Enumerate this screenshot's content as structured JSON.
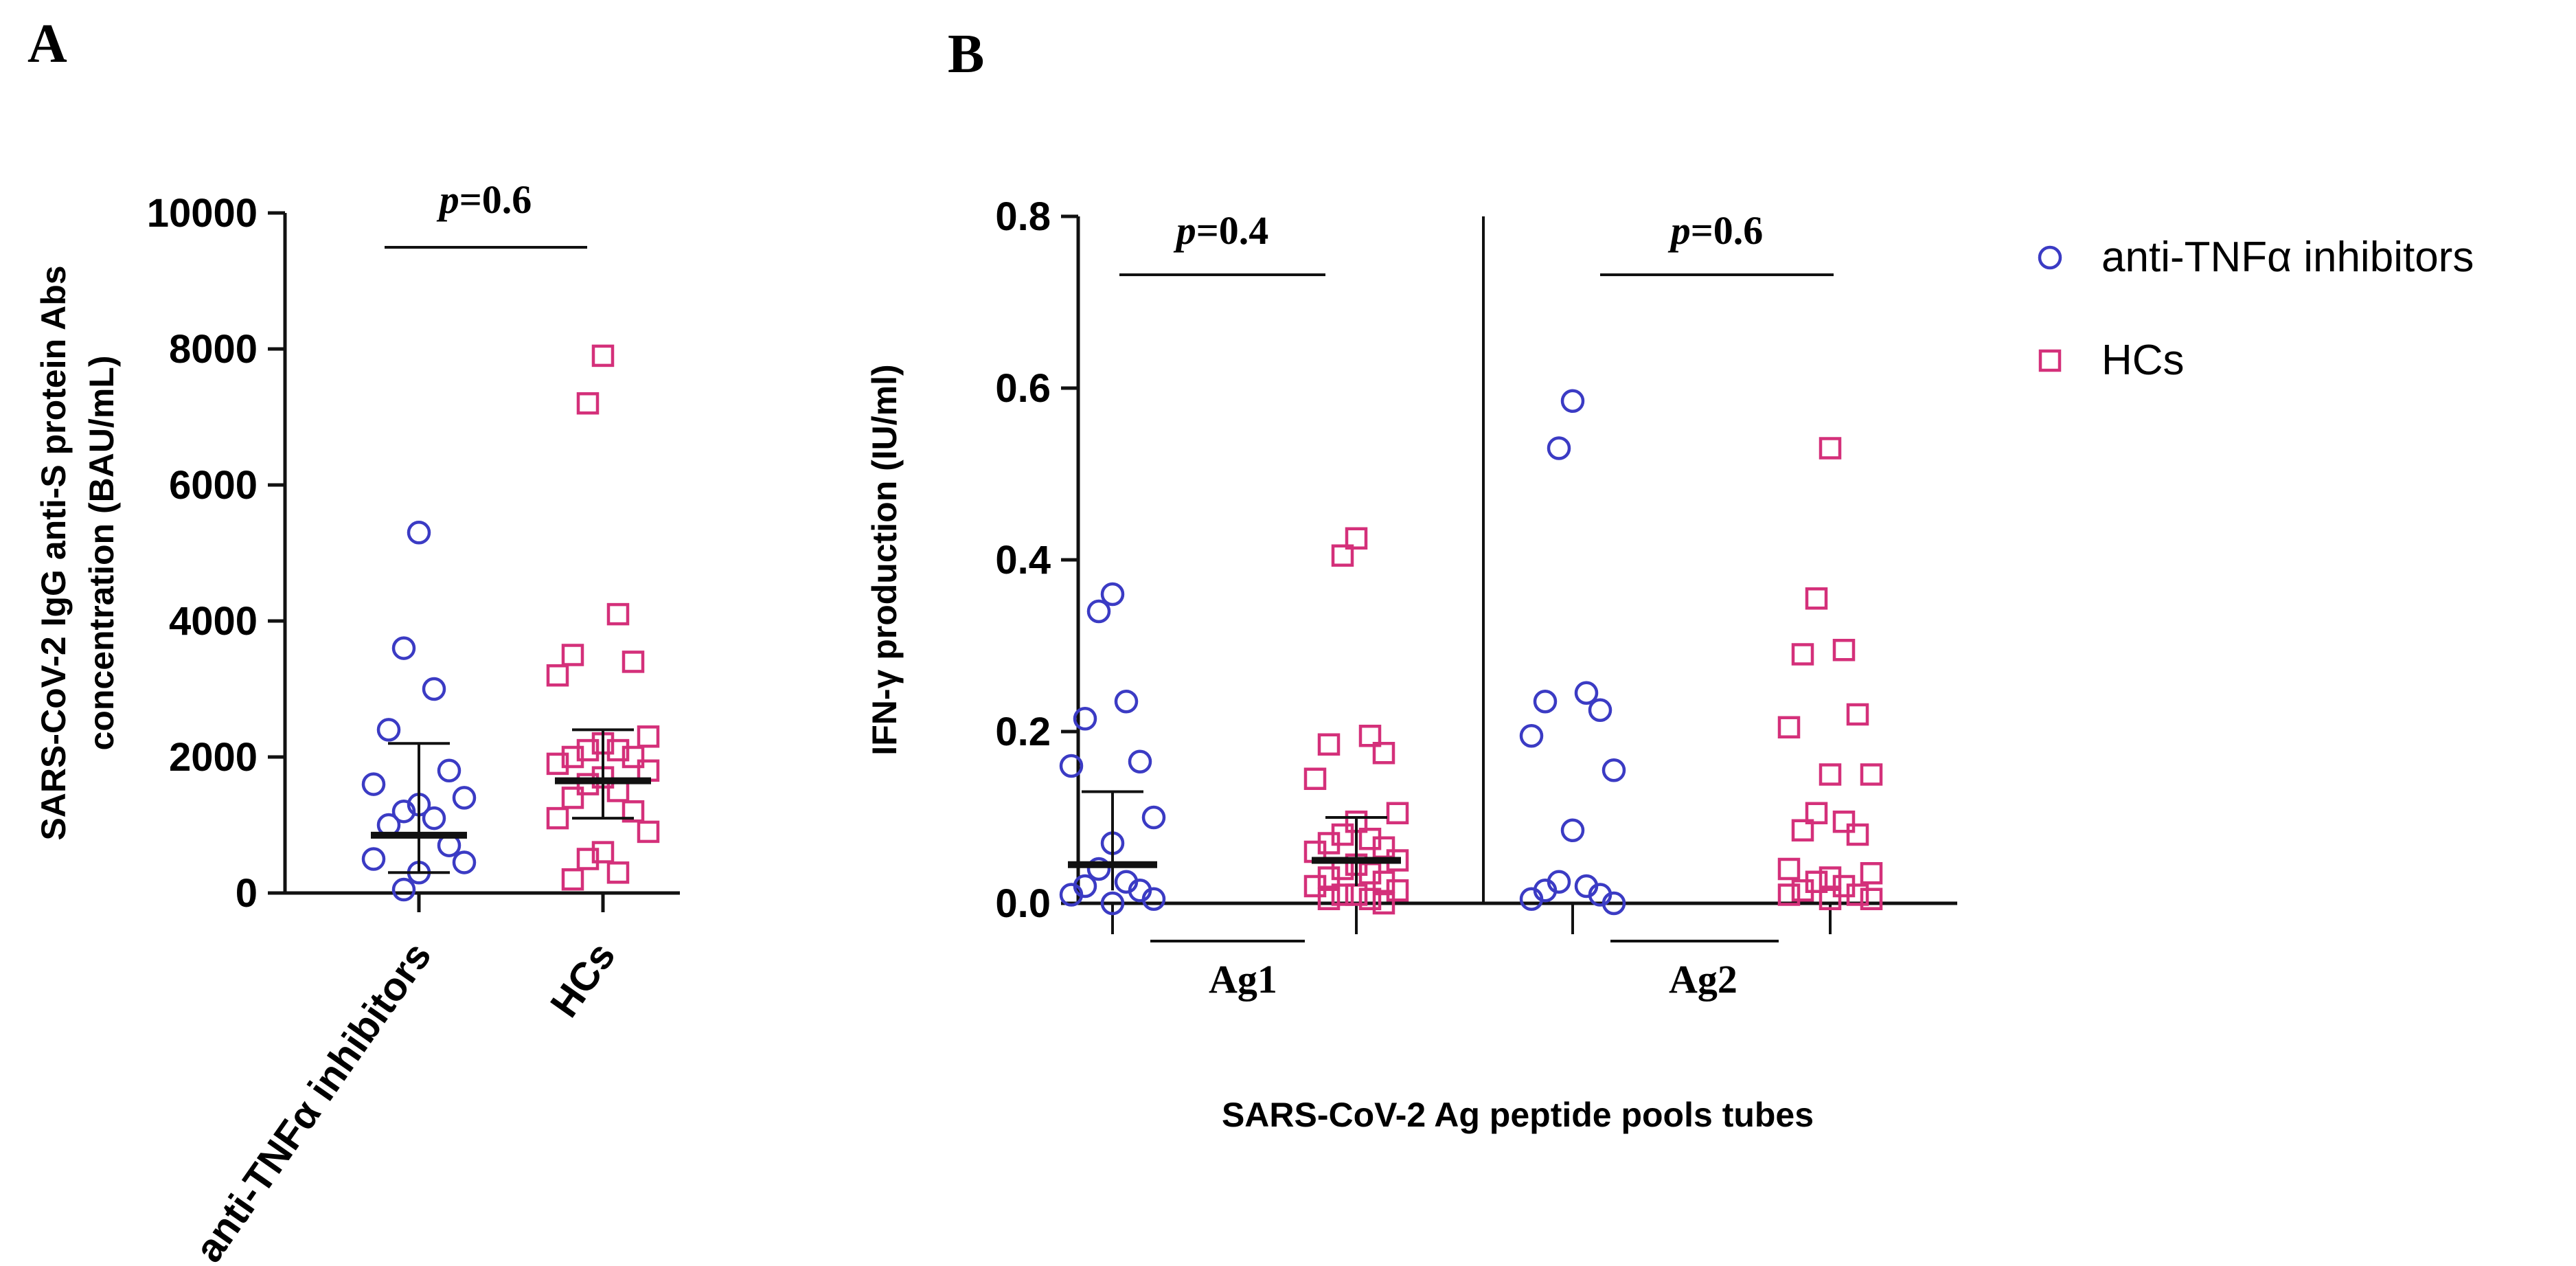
{
  "colors": {
    "anti_tnf": "#3b3bc4",
    "hcs": "#d4307a",
    "axis": "#111111"
  },
  "chart_data": [
    {
      "panel": "A",
      "type": "scatter",
      "ylabel_lines": [
        "SARS-CoV-2 IgG anti-S protein Abs",
        "concentration (BAU/mL)"
      ],
      "ylim": [
        0,
        10000
      ],
      "yticks": [
        "0",
        "2000",
        "4000",
        "6000",
        "8000",
        "10000"
      ],
      "categories": [
        "anti-TNFα inhibitors",
        "HCs"
      ],
      "p_value": {
        "prefix": "p",
        "text": "=0.6"
      },
      "series": [
        {
          "name": "anti-TNFα inhibitors",
          "marker": "circle",
          "median": 850,
          "lower": 300,
          "upper": 2200,
          "values": [
            5300,
            3600,
            3000,
            2400,
            1800,
            1600,
            1400,
            1300,
            1200,
            1100,
            1000,
            700,
            500,
            450,
            300,
            50
          ]
        },
        {
          "name": "HCs",
          "marker": "square",
          "median": 1650,
          "lower": 1100,
          "upper": 2400,
          "values": [
            7900,
            7200,
            4100,
            3500,
            3400,
            3200,
            2300,
            2200,
            2100,
            2100,
            2000,
            2000,
            1900,
            1800,
            1700,
            1600,
            1500,
            1400,
            1200,
            1100,
            900,
            600,
            500,
            300,
            200
          ]
        }
      ]
    },
    {
      "panel": "B",
      "type": "scatter",
      "ylabel": "IFN-γ production (IU/ml)",
      "xlabel": "SARS-CoV-2 Ag peptide pools tubes",
      "ylim": [
        0,
        0.8
      ],
      "yticks": [
        "0.0",
        "0.2",
        "0.4",
        "0.6",
        "0.8"
      ],
      "groups": [
        {
          "label": "Ag1",
          "p_value": {
            "prefix": "p",
            "text": "=0.4"
          },
          "series": [
            {
              "name": "anti-TNFα inhibitors",
              "marker": "circle",
              "median": 0.045,
              "lower": 0.015,
              "upper": 0.13,
              "values": [
                0.36,
                0.34,
                0.235,
                0.215,
                0.165,
                0.16,
                0.1,
                0.07,
                0.04,
                0.025,
                0.02,
                0.015,
                0.01,
                0.005,
                0.0
              ]
            },
            {
              "name": "HCs",
              "marker": "square",
              "median": 0.05,
              "lower": 0.02,
              "upper": 0.1,
              "values": [
                0.425,
                0.405,
                0.195,
                0.185,
                0.175,
                0.145,
                0.105,
                0.095,
                0.08,
                0.075,
                0.07,
                0.065,
                0.06,
                0.05,
                0.045,
                0.04,
                0.035,
                0.03,
                0.025,
                0.02,
                0.015,
                0.01,
                0.01,
                0.005,
                0.005,
                0.0
              ]
            }
          ]
        },
        {
          "label": "Ag2",
          "p_value": {
            "prefix": "p",
            "text": "=0.6"
          },
          "series": [
            {
              "name": "anti-TNFα inhibitors",
              "marker": "circle",
              "values": [
                0.585,
                0.53,
                0.245,
                0.235,
                0.225,
                0.195,
                0.155,
                0.085,
                0.025,
                0.02,
                0.015,
                0.01,
                0.005,
                0.0
              ]
            },
            {
              "name": "HCs",
              "marker": "square",
              "values": [
                0.53,
                0.355,
                0.295,
                0.29,
                0.22,
                0.205,
                0.15,
                0.15,
                0.105,
                0.095,
                0.085,
                0.08,
                0.04,
                0.035,
                0.03,
                0.025,
                0.02,
                0.015,
                0.01,
                0.01,
                0.005,
                0.005
              ]
            }
          ]
        }
      ]
    }
  ],
  "legend": [
    {
      "label": "anti-TNFα inhibitors",
      "marker": "circle"
    },
    {
      "label": "HCs",
      "marker": "square"
    }
  ]
}
